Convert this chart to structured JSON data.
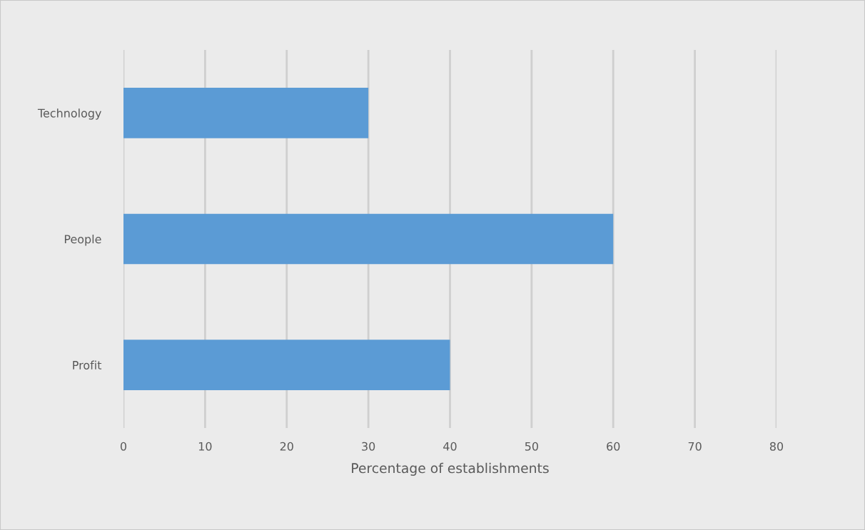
{
  "chart_data": {
    "type": "bar",
    "orientation": "horizontal",
    "categories": [
      "Technology",
      "People",
      "Profit"
    ],
    "values": [
      30,
      60,
      40
    ],
    "color": "#5b9bd5",
    "xlabel": "Percentage of establishments",
    "xlim": [
      0,
      80
    ],
    "xticks": [
      0,
      10,
      20,
      30,
      40,
      50,
      60,
      70,
      80
    ],
    "grid": "x"
  }
}
